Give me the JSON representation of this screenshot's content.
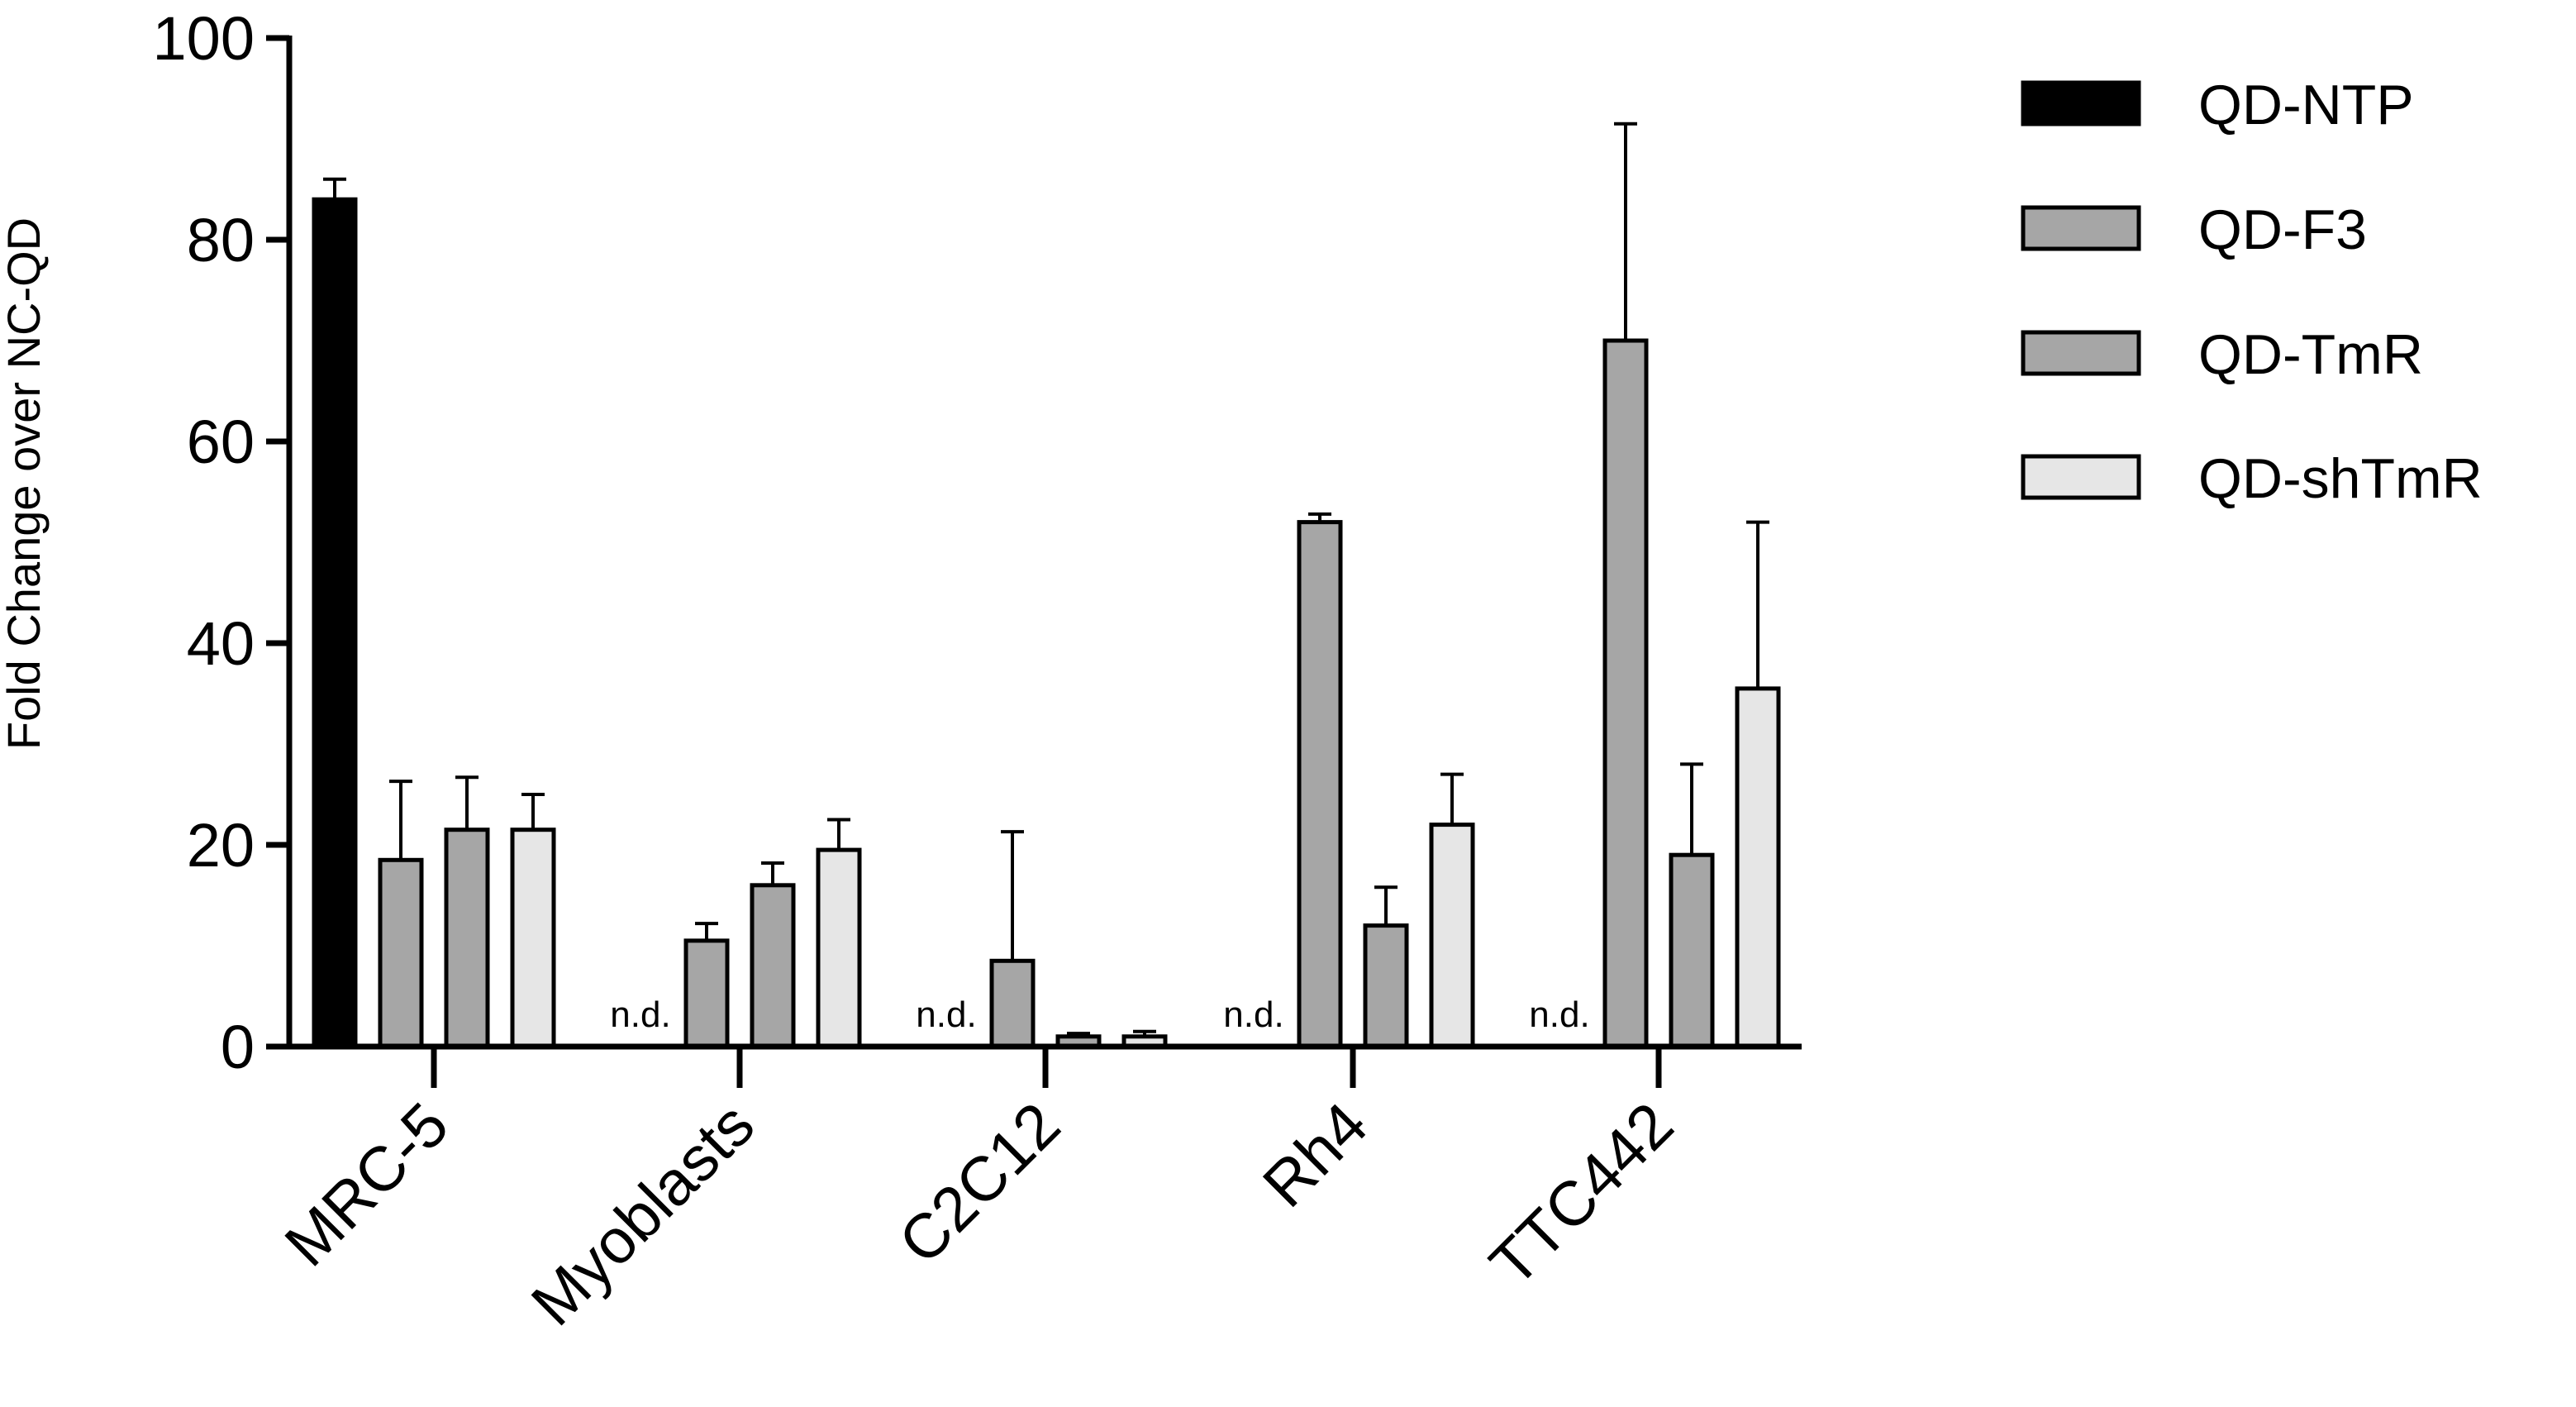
{
  "chart_data": {
    "type": "bar",
    "title": "",
    "xlabel": "",
    "ylabel": "Fold Change over NC-QD",
    "ylim": [
      0,
      100
    ],
    "yticks": [
      0,
      20,
      40,
      60,
      80,
      100
    ],
    "categories": [
      "MRC-5",
      "Myoblasts",
      "C2C12",
      "Rh4",
      "TTC442"
    ],
    "series": [
      {
        "name": "QD-NTP",
        "color": "#000000",
        "values": [
          84,
          null,
          null,
          null,
          null
        ],
        "errors": [
          2,
          null,
          null,
          null,
          null
        ]
      },
      {
        "name": "QD-F3",
        "color": "#a6a6a6",
        "values": [
          18.5,
          10.5,
          8.5,
          52,
          70
        ],
        "errors": [
          7.8,
          1.7,
          12.8,
          0.8,
          21.5
        ]
      },
      {
        "name": "QD-TmR",
        "color": "#a6a6a6",
        "values": [
          21.5,
          16,
          1,
          12,
          19
        ],
        "errors": [
          5.2,
          2.2,
          0.3,
          3.8,
          9
        ]
      },
      {
        "name": "QD-shTmR",
        "color": "#e6e6e6",
        "values": [
          21.5,
          19.5,
          1,
          22,
          35.5
        ],
        "errors": [
          3.5,
          3,
          0.5,
          5,
          16.5
        ]
      }
    ],
    "not_detected_label": "n.d.",
    "legend_position": "right",
    "grid": false
  }
}
